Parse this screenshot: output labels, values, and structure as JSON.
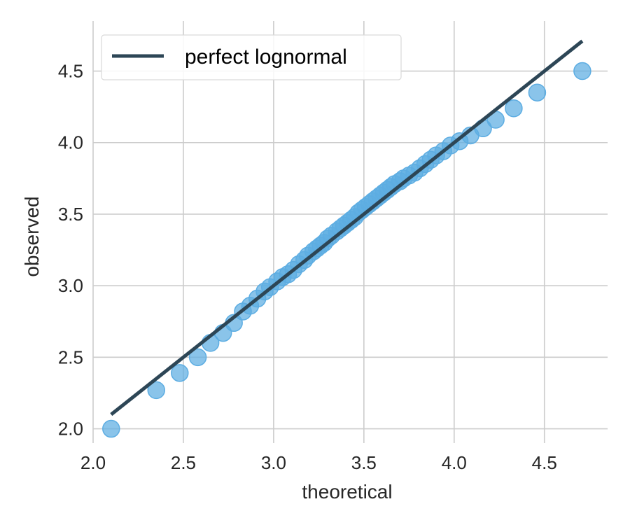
{
  "chart_data": {
    "type": "scatter",
    "xlabel": "theoretical",
    "ylabel": "observed",
    "xlim": [
      2.0,
      4.85
    ],
    "ylim": [
      1.9,
      4.85
    ],
    "xticks": [
      "2.0",
      "2.5",
      "3.0",
      "3.5",
      "4.0",
      "4.5"
    ],
    "yticks": [
      "2.0",
      "2.5",
      "3.0",
      "3.5",
      "4.0",
      "4.5"
    ],
    "grid": true,
    "legend": {
      "position": "top-left",
      "entries": [
        "perfect lognormal"
      ]
    },
    "series": [
      {
        "name": "perfect lognormal",
        "kind": "line",
        "color": "#2d4656",
        "x": [
          2.1,
          4.71
        ],
        "y": [
          2.1,
          4.71
        ]
      },
      {
        "kind": "scatter",
        "color": "#5dade2",
        "x": [
          2.1,
          2.35,
          2.48,
          2.58,
          2.65,
          2.72,
          2.78,
          2.83,
          2.87,
          2.91,
          2.95,
          2.98,
          3.02,
          3.05,
          3.08,
          3.11,
          3.14,
          3.17,
          3.19,
          3.22,
          3.24,
          3.26,
          3.28,
          3.3,
          3.32,
          3.35,
          3.37,
          3.39,
          3.41,
          3.43,
          3.45,
          3.47,
          3.49,
          3.51,
          3.53,
          3.55,
          3.57,
          3.59,
          3.61,
          3.63,
          3.65,
          3.67,
          3.7,
          3.72,
          3.75,
          3.78,
          3.81,
          3.84,
          3.87,
          3.9,
          3.94,
          3.98,
          4.03,
          4.09,
          4.16,
          4.23,
          4.33,
          4.46,
          4.71
        ],
        "y": [
          2.0,
          2.27,
          2.39,
          2.5,
          2.6,
          2.67,
          2.74,
          2.82,
          2.86,
          2.91,
          2.96,
          2.99,
          3.03,
          3.06,
          3.08,
          3.11,
          3.15,
          3.18,
          3.21,
          3.24,
          3.26,
          3.28,
          3.3,
          3.33,
          3.35,
          3.38,
          3.4,
          3.42,
          3.44,
          3.46,
          3.48,
          3.51,
          3.53,
          3.55,
          3.57,
          3.59,
          3.61,
          3.63,
          3.65,
          3.67,
          3.69,
          3.71,
          3.73,
          3.75,
          3.77,
          3.79,
          3.82,
          3.85,
          3.88,
          3.91,
          3.94,
          3.98,
          4.01,
          4.05,
          4.1,
          4.16,
          4.24,
          4.35,
          4.5
        ]
      }
    ]
  }
}
